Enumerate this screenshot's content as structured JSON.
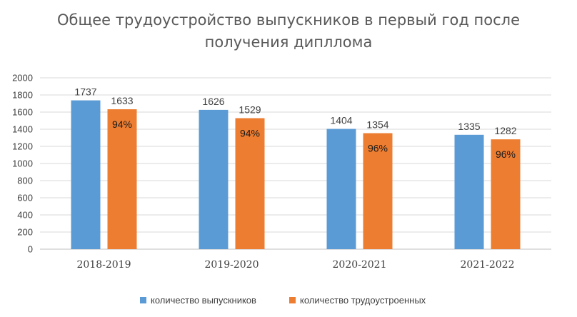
{
  "chart_data": {
    "type": "bar",
    "title_lines": [
      "Общее трудоустройство выпускников в первый год после",
      "получения дипллома"
    ],
    "categories": [
      "2018-2019",
      "2019-2020",
      "2020-2021",
      "2021-2022"
    ],
    "series": [
      {
        "name": "количество выпускников",
        "values": [
          1737,
          1626,
          1404,
          1335
        ],
        "color": "#5b9bd5"
      },
      {
        "name": "количество трудоустроенных",
        "values": [
          1633,
          1529,
          1354,
          1282
        ],
        "color": "#ed7d31",
        "annotations": [
          "94%",
          "94%",
          "96%",
          "96%"
        ]
      }
    ],
    "ylim": [
      0,
      2000
    ],
    "yticks": [
      0,
      200,
      400,
      600,
      800,
      1000,
      1200,
      1400,
      1600,
      1800,
      2000
    ],
    "grid": true,
    "legend_position": "bottom",
    "gridline_color": "#d9d9d9"
  }
}
